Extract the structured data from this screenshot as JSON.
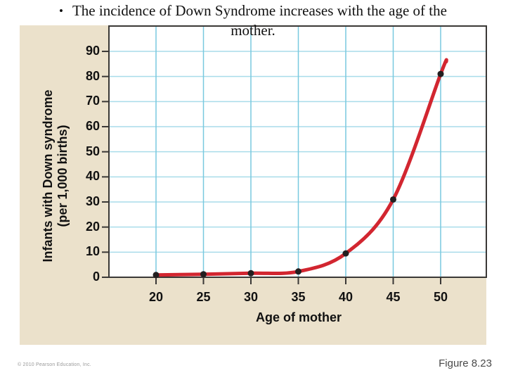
{
  "slide": {
    "bullet": "•",
    "title_line1": "The incidence of Down Syndrome increases with the age of the",
    "title_line2": "mother.",
    "copyright": "© 2010 Pearson Education, Inc.",
    "figure_label": "Figure 8.23"
  },
  "chart_data": {
    "type": "line",
    "xlabel": "Age of mother",
    "ylabel_line1": "Infants with Down syndrome",
    "ylabel_line2": "(per 1,000 births)",
    "x": [
      20,
      25,
      30,
      35,
      40,
      45,
      50
    ],
    "values": [
      0.9,
      1.2,
      1.6,
      2.3,
      9.5,
      31,
      81
    ],
    "x_ticks": [
      20,
      25,
      30,
      35,
      40,
      45,
      50
    ],
    "y_ticks": [
      0,
      10,
      20,
      30,
      40,
      50,
      60,
      70,
      80,
      90
    ],
    "xlim": [
      15,
      54.8
    ],
    "ylim": [
      0,
      100
    ],
    "grid": true,
    "legend_position": "none",
    "curve_tip": {
      "x": 50.6,
      "y": 86
    },
    "colors": {
      "line": "#d22630",
      "point": "#231f20",
      "panel_bg": "#ebe1cb",
      "plot_bg": "#ffffff",
      "grid_horizontal": "#a9dcea",
      "grid_vertical": "#79c9df",
      "axis": "#3a3836"
    }
  }
}
